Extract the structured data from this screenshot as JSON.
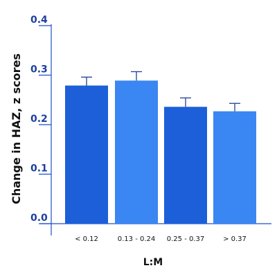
{
  "chart_data": {
    "type": "bar",
    "categories": [
      "< 0.12",
      "0.13 - 0.24",
      "0.25 - 0.37",
      "> 0.37"
    ],
    "values": [
      0.279,
      0.289,
      0.236,
      0.227
    ],
    "errors": [
      0.017,
      0.018,
      0.018,
      0.016
    ],
    "xlabel": "L:M",
    "ylabel": "Change in HAZ, z scores",
    "ylim": [
      0.0,
      0.4
    ],
    "yticks": [
      0.0,
      0.1,
      0.2,
      0.3,
      0.4
    ],
    "ytick_labels": [
      "0.0",
      "0.1",
      "0.2",
      "0.3",
      "0.4"
    ],
    "grid": false,
    "colors": {
      "bars": [
        "#1c5fd9",
        "#3a86f2",
        "#1c5fd9",
        "#3a86f2"
      ],
      "axis": "#1d4fcf",
      "ytick_text": "#1e3f9e",
      "error_bar": "#1f3f9b"
    }
  }
}
